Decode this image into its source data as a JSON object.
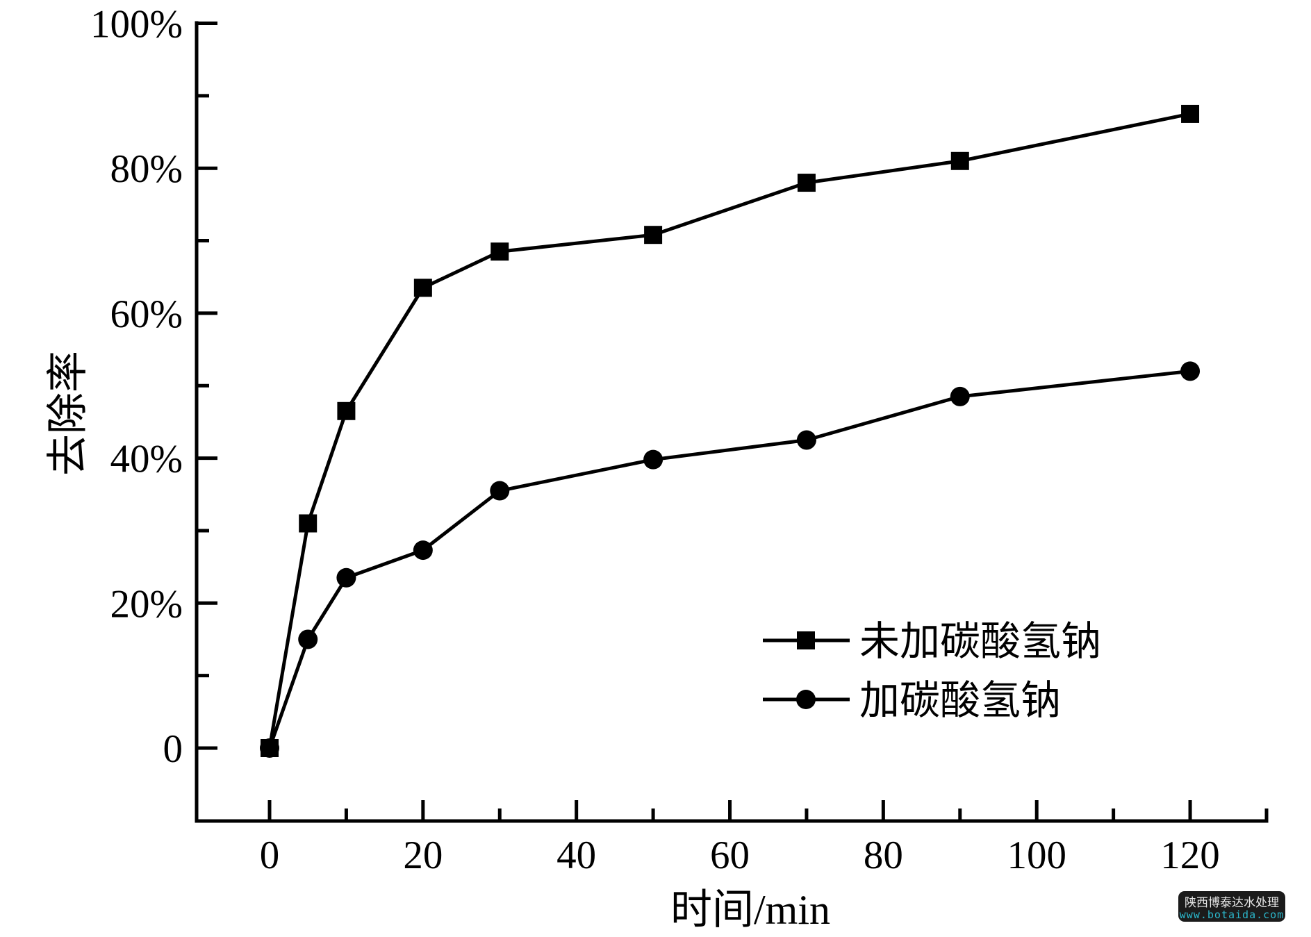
{
  "chart_data": {
    "type": "line",
    "title": "",
    "xlabel": "时间/min",
    "ylabel": "去除率",
    "xlim": [
      -9.5,
      130
    ],
    "ylim": [
      -10,
      100
    ],
    "grid": false,
    "legend_position": "inside lower right",
    "x_ticks_major": [
      0,
      20,
      40,
      60,
      80,
      100,
      120
    ],
    "x_tick_labels": [
      "0",
      "20",
      "40",
      "60",
      "80",
      "100",
      "120"
    ],
    "x_ticks_minor": [
      10,
      30,
      50,
      70,
      90,
      110,
      130
    ],
    "y_ticks_major": [
      0,
      20,
      40,
      60,
      80,
      100
    ],
    "y_tick_labels": [
      "0",
      "20%",
      "40%",
      "60%",
      "80%",
      "100%"
    ],
    "y_ticks_minor": [
      10,
      30,
      50,
      70,
      90
    ],
    "x_unit": "min",
    "y_unit": "percent",
    "series": [
      {
        "name": "未加碳酸氢钠",
        "marker": "square",
        "x": [
          0,
          5,
          10,
          20,
          30,
          50,
          70,
          90,
          120
        ],
        "values": [
          0,
          31,
          46.5,
          63.5,
          68.5,
          70.8,
          78,
          81,
          87.5
        ]
      },
      {
        "name": "加碳酸氢钠",
        "marker": "circle",
        "x": [
          0,
          5,
          10,
          20,
          30,
          50,
          70,
          90,
          120
        ],
        "values": [
          0,
          15,
          23.5,
          27.3,
          35.5,
          39.8,
          42.5,
          48.5,
          52
        ]
      }
    ]
  },
  "colors": {
    "line": "#000000",
    "background": "#ffffff",
    "watermark_bg": "#1b1b1b",
    "watermark_text": "#e9e9e9",
    "watermark_url": "#2bb7cb"
  },
  "watermark": {
    "line1": "陕西博泰达水处理",
    "line2": "www.botaida.com"
  }
}
